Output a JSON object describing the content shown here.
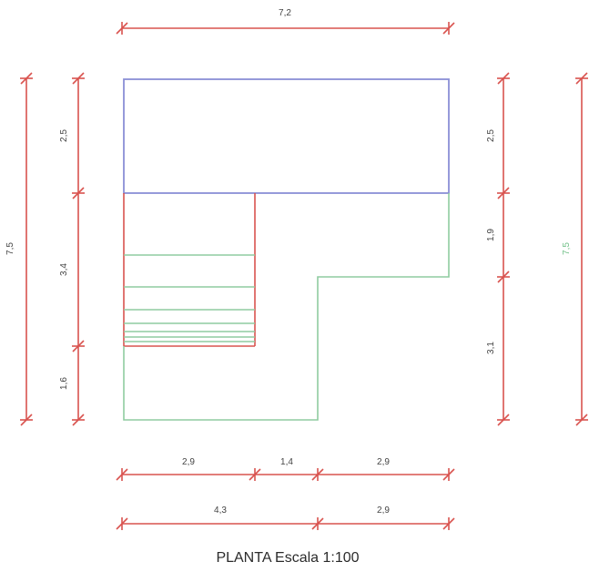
{
  "dimensions": {
    "top_total": "7,2",
    "left_outer": "7,5",
    "left_inner_top": "2,5",
    "left_inner_mid": "3,4",
    "left_inner_bottom": "1,6",
    "right_inner_top": "2,5",
    "right_inner_mid": "1,9",
    "right_inner_bottom": "3,1",
    "right_outer": "7,5",
    "bottom_row1_a": "2,9",
    "bottom_row1_b": "1,4",
    "bottom_row1_c": "2,9",
    "bottom_row2_a": "4,3",
    "bottom_row2_b": "2,9"
  },
  "caption": "PLANTA Escala 1:100",
  "colors": {
    "dimension": "#d9534f",
    "upper_room": "#8a8fd6",
    "stair_and_lower": "#8fcca0"
  }
}
